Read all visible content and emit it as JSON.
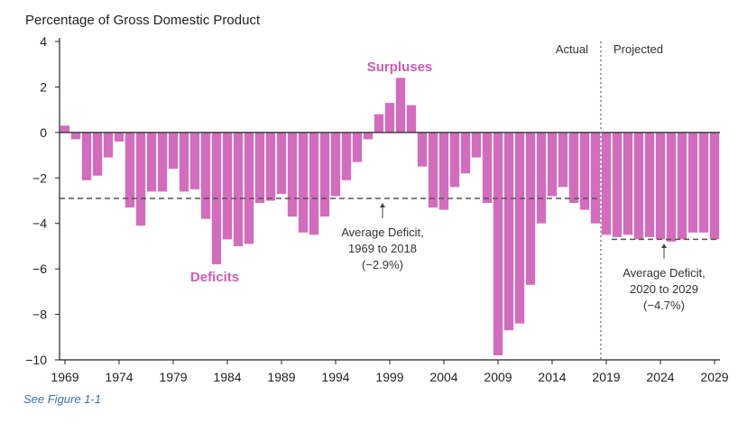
{
  "chart_data": {
    "type": "bar",
    "ylabel": "Percentage of Gross Domestic Product",
    "ylim": [
      -10,
      4
    ],
    "yticks": [
      4,
      2,
      0,
      -2,
      -4,
      -6,
      -8,
      -10
    ],
    "xticks": [
      1969,
      1974,
      1979,
      1984,
      1989,
      1994,
      1999,
      2004,
      2009,
      2014,
      2019,
      2024,
      2029
    ],
    "grid": false,
    "colors": {
      "bar": "#d36cbd",
      "text_accent": "#cf5ab5",
      "footer": "#3f6fa8"
    },
    "series": [
      {
        "name": "Actual",
        "x": [
          1969,
          1970,
          1971,
          1972,
          1973,
          1974,
          1975,
          1976,
          1977,
          1978,
          1979,
          1980,
          1981,
          1982,
          1983,
          1984,
          1985,
          1986,
          1987,
          1988,
          1989,
          1990,
          1991,
          1992,
          1993,
          1994,
          1995,
          1996,
          1997,
          1998,
          1999,
          2000,
          2001,
          2002,
          2003,
          2004,
          2005,
          2006,
          2007,
          2008,
          2009,
          2010,
          2011,
          2012,
          2013,
          2014,
          2015,
          2016,
          2017,
          2018
        ],
        "values": [
          0.3,
          -0.3,
          -2.1,
          -1.9,
          -1.1,
          -0.4,
          -3.3,
          -4.1,
          -2.6,
          -2.6,
          -1.6,
          -2.6,
          -2.5,
          -3.8,
          -5.8,
          -4.7,
          -5.0,
          -4.9,
          -3.1,
          -3.0,
          -2.7,
          -3.7,
          -4.4,
          -4.5,
          -3.7,
          -2.8,
          -2.1,
          -1.3,
          -0.3,
          0.8,
          1.3,
          2.4,
          1.2,
          -1.5,
          -3.3,
          -3.4,
          -2.4,
          -1.8,
          -1.1,
          -3.1,
          -9.8,
          -8.7,
          -8.4,
          -6.7,
          -4.0,
          -2.8,
          -2.4,
          -3.1,
          -3.4,
          -4.0
        ]
      },
      {
        "name": "Projected",
        "x": [
          2019,
          2020,
          2021,
          2022,
          2023,
          2024,
          2025,
          2026,
          2027,
          2028,
          2029
        ],
        "values": [
          -4.5,
          -4.6,
          -4.5,
          -4.7,
          -4.6,
          -4.7,
          -4.8,
          -4.7,
          -4.4,
          -4.4,
          -4.7
        ]
      }
    ],
    "averages": [
      {
        "from": 1969,
        "to": 2018,
        "value": -2.9
      },
      {
        "from": 2020,
        "to": 2029,
        "value": -4.7
      }
    ]
  },
  "labels": {
    "actual": "Actual",
    "projected": "Projected",
    "surpluses": "Surpluses",
    "deficits": "Deficits",
    "avg1": [
      "Average Deficit,",
      "1969 to 2018",
      "(−2.9%)"
    ],
    "avg2": [
      "Average Deficit,",
      "2020 to 2029",
      "(−4.7%)"
    ]
  },
  "footer": "See Figure 1-1"
}
